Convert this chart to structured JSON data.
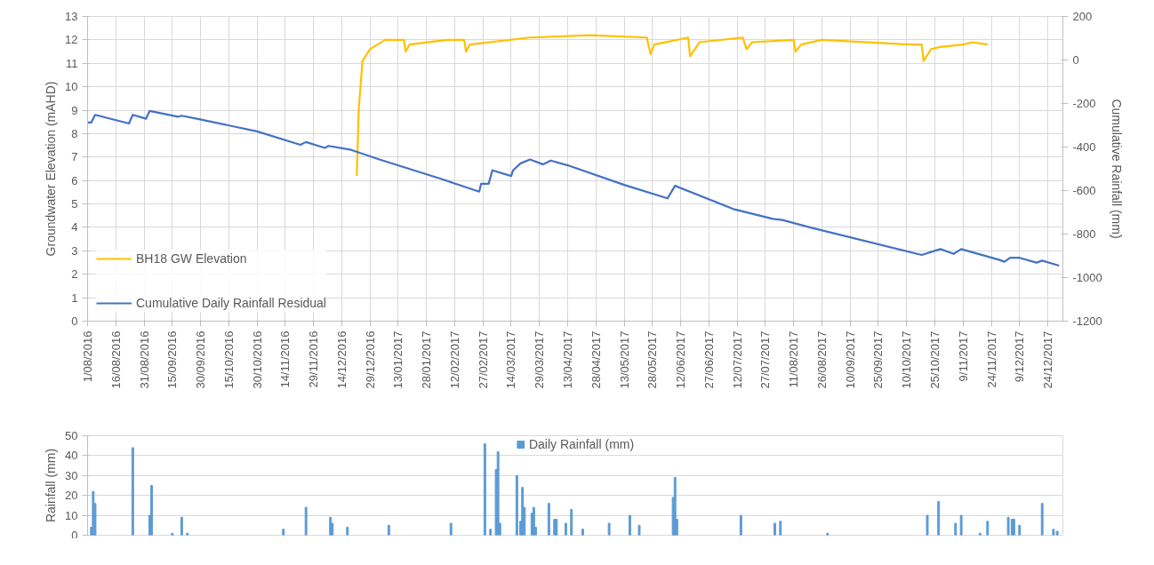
{
  "chart_data": [
    {
      "type": "line",
      "ylabel": "Groundwater Elevation (mAHD)",
      "y2label": "Cumulative Rainfall (mm)",
      "xlim": [
        "2016-08-01",
        "2018-01-01"
      ],
      "xticks": [
        {
          "value": "2016-08-01",
          "label": "1/08/2016"
        },
        {
          "value": "2016-08-16",
          "label": "16/08/2016"
        },
        {
          "value": "2016-08-31",
          "label": "31/08/2016"
        },
        {
          "value": "2016-09-15",
          "label": "15/09/2016"
        },
        {
          "value": "2016-09-30",
          "label": "30/09/2016"
        },
        {
          "value": "2016-10-15",
          "label": "15/10/2016"
        },
        {
          "value": "2016-10-30",
          "label": "30/10/2016"
        },
        {
          "value": "2016-11-14",
          "label": "14/11/2016"
        },
        {
          "value": "2016-11-29",
          "label": "29/11/2016"
        },
        {
          "value": "2016-12-14",
          "label": "14/12/2016"
        },
        {
          "value": "2016-12-29",
          "label": "29/12/2016"
        },
        {
          "value": "2017-01-13",
          "label": "13/01/2017"
        },
        {
          "value": "2017-01-28",
          "label": "28/01/2017"
        },
        {
          "value": "2017-02-12",
          "label": "12/02/2017"
        },
        {
          "value": "2017-02-27",
          "label": "27/02/2017"
        },
        {
          "value": "2017-03-14",
          "label": "14/03/2017"
        },
        {
          "value": "2017-03-29",
          "label": "29/03/2017"
        },
        {
          "value": "2017-04-13",
          "label": "13/04/2017"
        },
        {
          "value": "2017-04-28",
          "label": "28/04/2017"
        },
        {
          "value": "2017-05-13",
          "label": "13/05/2017"
        },
        {
          "value": "2017-05-28",
          "label": "28/05/2017"
        },
        {
          "value": "2017-06-12",
          "label": "12/06/2017"
        },
        {
          "value": "2017-06-27",
          "label": "27/06/2017"
        },
        {
          "value": "2017-07-12",
          "label": "12/07/2017"
        },
        {
          "value": "2017-07-27",
          "label": "27/07/2017"
        },
        {
          "value": "2017-08-11",
          "label": "11/08/2017"
        },
        {
          "value": "2017-08-26",
          "label": "26/08/2017"
        },
        {
          "value": "2017-09-10",
          "label": "10/09/2017"
        },
        {
          "value": "2017-09-25",
          "label": "25/09/2017"
        },
        {
          "value": "2017-10-10",
          "label": "10/10/2017"
        },
        {
          "value": "2017-10-25",
          "label": "25/10/2017"
        },
        {
          "value": "2017-11-09",
          "label": "9/11/2017"
        },
        {
          "value": "2017-11-24",
          "label": "24/11/2017"
        },
        {
          "value": "2017-12-09",
          "label": "9/12/2017"
        },
        {
          "value": "2017-12-24",
          "label": "24/12/2017"
        }
      ],
      "ylim": [
        0,
        13
      ],
      "yticks": [
        0,
        1,
        2,
        3,
        4,
        5,
        6,
        7,
        8,
        9,
        10,
        11,
        12,
        13
      ],
      "y2lim": [
        -1200,
        200
      ],
      "y2ticks": [
        -1200,
        -1000,
        -800,
        -600,
        -400,
        -200,
        0,
        200
      ],
      "grid": true,
      "legend": "bottom left",
      "series": [
        {
          "name": "BH18 GW Elevation",
          "color": "#ffc000",
          "x": [
            "2016-12-22",
            "2016-12-23",
            "2016-12-25",
            "2016-12-29",
            "2017-01-06",
            "2017-01-16",
            "2017-01-17",
            "2017-01-19",
            "2017-02-08",
            "2017-02-17",
            "2017-02-18",
            "2017-02-20",
            "2017-03-24",
            "2017-04-25",
            "2017-05-25",
            "2017-05-27",
            "2017-05-29",
            "2017-06-16",
            "2017-06-17",
            "2017-06-22",
            "2017-07-15",
            "2017-07-17",
            "2017-07-20",
            "2017-08-11",
            "2017-08-12",
            "2017-08-15",
            "2017-08-26",
            "2017-10-12",
            "2017-10-18",
            "2017-10-19",
            "2017-10-23",
            "2017-10-28",
            "2017-11-09",
            "2017-11-14",
            "2017-11-22"
          ],
          "values": [
            6.2,
            9.0,
            11.1,
            11.6,
            12.0,
            12.0,
            11.5,
            11.8,
            12.0,
            12.0,
            11.5,
            11.8,
            12.1,
            12.2,
            12.1,
            11.4,
            11.8,
            12.1,
            11.3,
            11.9,
            12.1,
            11.6,
            11.9,
            12.0,
            11.5,
            11.8,
            12.0,
            11.8,
            11.8,
            11.1,
            11.6,
            11.7,
            11.8,
            11.9,
            11.8
          ]
        },
        {
          "name": "Cumulative Daily Rainfall Residual",
          "color": "#4472c4",
          "axis": "y2",
          "x": [
            "2016-08-01",
            "2016-08-03",
            "2016-08-05",
            "2016-08-23",
            "2016-08-25",
            "2016-09-01",
            "2016-09-03",
            "2016-09-18",
            "2016-09-20",
            "2016-09-28",
            "2016-10-30",
            "2016-11-22",
            "2016-11-25",
            "2016-12-05",
            "2016-12-07",
            "2016-12-19",
            "2017-01-03",
            "2017-02-05",
            "2017-02-25",
            "2017-02-26",
            "2017-03-02",
            "2017-03-04",
            "2017-03-14",
            "2017-03-15",
            "2017-03-19",
            "2017-03-24",
            "2017-03-31",
            "2017-04-04",
            "2017-04-13",
            "2017-05-13",
            "2017-06-05",
            "2017-06-09",
            "2017-07-10",
            "2017-07-31",
            "2017-08-05",
            "2017-08-20",
            "2017-10-18",
            "2017-10-23",
            "2017-10-28",
            "2017-11-04",
            "2017-11-08",
            "2017-11-28",
            "2017-12-01",
            "2017-12-04",
            "2017-12-09",
            "2017-12-18",
            "2017-12-21",
            "2017-12-30"
          ],
          "values": [
            -287,
            -287,
            -252,
            -292,
            -252,
            -270,
            -234,
            -261,
            -256,
            -270,
            -328,
            -390,
            -377,
            -404,
            -395,
            -413,
            -457,
            -547,
            -605,
            -569,
            -569,
            -507,
            -533,
            -507,
            -475,
            -457,
            -480,
            -462,
            -484,
            -574,
            -636,
            -578,
            -685,
            -730,
            -735,
            -770,
            -896,
            -882,
            -869,
            -891,
            -869,
            -918,
            -927,
            -909,
            -909,
            -931,
            -922,
            -945
          ]
        }
      ]
    },
    {
      "type": "bar",
      "ylabel": "Rainfall (mm)",
      "xlim": [
        "2016-08-01",
        "2018-01-01"
      ],
      "ylim": [
        0,
        50
      ],
      "yticks": [
        0,
        10,
        20,
        30,
        40,
        50
      ],
      "grid": "y",
      "legend": "top",
      "tick_labels": "y",
      "series": [
        {
          "name": "Daily Rainfall (mm)",
          "color": "#5b9bd5",
          "x": [
            "2016-08-03",
            "2016-08-04",
            "2016-08-05",
            "2016-08-25",
            "2016-09-03",
            "2016-09-04",
            "2016-09-15",
            "2016-09-20",
            "2016-09-23",
            "2016-11-13",
            "2016-11-25",
            "2016-12-08",
            "2016-12-09",
            "2016-12-17",
            "2017-01-08",
            "2017-02-10",
            "2017-02-28",
            "2017-03-03",
            "2017-03-06",
            "2017-03-07",
            "2017-03-08",
            "2017-03-17",
            "2017-03-19",
            "2017-03-20",
            "2017-03-21",
            "2017-03-25",
            "2017-03-26",
            "2017-03-27",
            "2017-04-03",
            "2017-04-06",
            "2017-04-07",
            "2017-04-12",
            "2017-04-15",
            "2017-04-21",
            "2017-05-05",
            "2017-05-16",
            "2017-05-21",
            "2017-06-08",
            "2017-06-09",
            "2017-06-10",
            "2017-07-14",
            "2017-08-01",
            "2017-08-04",
            "2017-08-29",
            "2017-10-21",
            "2017-10-27",
            "2017-11-05",
            "2017-11-08",
            "2017-11-18",
            "2017-11-22",
            "2017-12-03",
            "2017-12-05",
            "2017-12-06",
            "2017-12-09",
            "2017-12-21",
            "2017-12-27",
            "2017-12-29"
          ],
          "values": [
            4,
            22,
            16,
            44,
            10,
            25,
            1,
            9,
            1,
            3,
            14,
            9,
            6,
            4,
            5,
            6,
            46,
            3,
            33,
            42,
            6,
            30,
            7,
            24,
            14,
            11,
            14,
            4,
            16,
            8,
            8,
            6,
            13,
            3,
            6,
            10,
            5,
            19,
            29,
            8,
            10,
            6,
            7,
            1,
            10,
            17,
            6,
            10,
            1,
            7,
            9,
            8,
            8,
            5,
            16,
            3,
            2
          ]
        }
      ]
    }
  ]
}
